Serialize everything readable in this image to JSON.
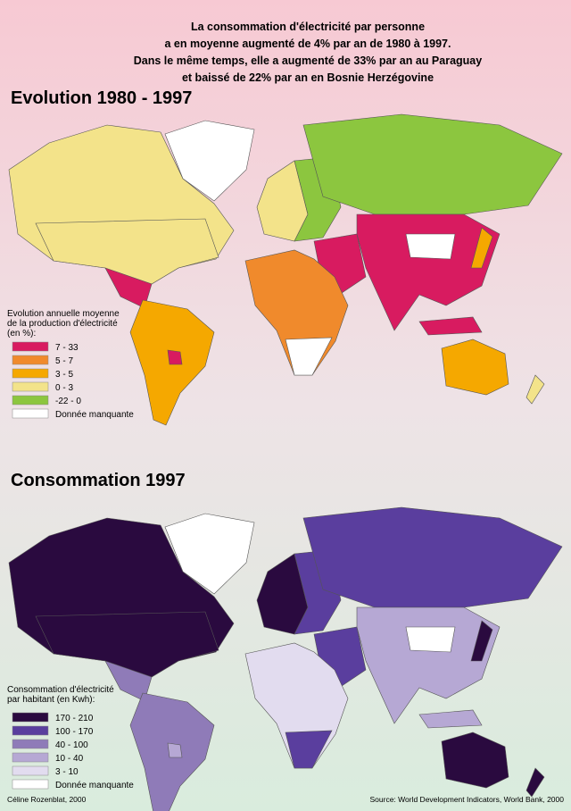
{
  "header": {
    "lines": [
      "La consommation d'électricité par personne",
      "a en moyenne augmenté de 4% par an de 1980 à 1997.",
      "Dans le même temps, elle a augmenté de 33% par an au Paraguay",
      "et baissé de 22% par an en Bosnie Herzégovine"
    ]
  },
  "maps": [
    {
      "title": "Evolution 1980 - 1997",
      "legend": {
        "title": [
          "Evolution annuelle moyenne",
          "de la production d'électricité",
          "(en %):"
        ],
        "items": [
          {
            "label": "7 - 33",
            "color": "#d81b60"
          },
          {
            "label": "5 - 7",
            "color": "#f08a2c"
          },
          {
            "label": "3 - 5",
            "color": "#f5a800"
          },
          {
            "label": "0 - 3",
            "color": "#f3e38a"
          },
          {
            "label": "-22 - 0",
            "color": "#8cc63f"
          },
          {
            "label": "Donnée manquante",
            "color": "#ffffff"
          }
        ]
      }
    },
    {
      "title": "Consommation 1997",
      "legend": {
        "title": [
          "Consommation d'électricité",
          "par habitant (en Kwh):"
        ],
        "items": [
          {
            "label": "170 - 210",
            "color": "#2a0a3f"
          },
          {
            "label": "100 - 170",
            "color": "#5a3e9e"
          },
          {
            "label": "40 - 100",
            "color": "#8f7bb8"
          },
          {
            "label": "10 - 40",
            "color": "#b6a8d4"
          },
          {
            "label": "3 - 10",
            "color": "#e2dcef"
          },
          {
            "label": "Donnée manquante",
            "color": "#ffffff"
          }
        ]
      }
    }
  ],
  "footer": {
    "credit": "Céline Rozenblat, 2000",
    "source": "Source: World Development Indicators, World Bank, 2000"
  }
}
